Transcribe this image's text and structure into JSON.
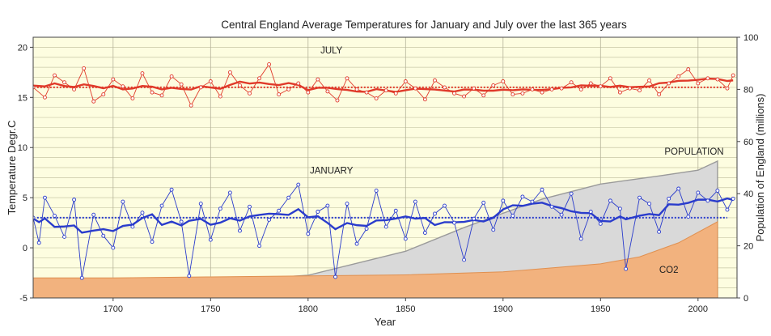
{
  "chart_data": {
    "type": "line",
    "title": "Central England Average Temperatures for January and July over the last 365 years",
    "xlabel": "Year",
    "ylabel": "Temperature Degr.C",
    "y2label": "Population of England (millions)",
    "xlim": [
      1659,
      2020
    ],
    "ylim": [
      -5,
      21
    ],
    "y2lim": [
      0,
      100
    ],
    "x_ticks": [
      1700,
      1750,
      1800,
      1850,
      1900,
      1950,
      2000
    ],
    "y_ticks": [
      -5,
      0,
      5,
      10,
      15,
      20
    ],
    "y2_ticks": [
      0,
      20,
      40,
      60,
      80,
      100
    ],
    "grid": true,
    "annotations": [
      {
        "label": "JULY",
        "x": 1812,
        "y": 19.4
      },
      {
        "label": "JANUARY",
        "x": 1812,
        "y": 7.4
      },
      {
        "label": "POPULATION",
        "x": 1998,
        "y": 9.3
      },
      {
        "label": "CO2",
        "x": 1985,
        "y": -2.5
      }
    ],
    "series": [
      {
        "name": "July",
        "color": "#e03a2a",
        "mean": 16.0,
        "x": [
          1659,
          1665,
          1670,
          1675,
          1680,
          1685,
          1690,
          1695,
          1700,
          1705,
          1710,
          1715,
          1720,
          1725,
          1730,
          1735,
          1740,
          1745,
          1750,
          1755,
          1760,
          1765,
          1770,
          1775,
          1780,
          1785,
          1790,
          1795,
          1800,
          1805,
          1810,
          1815,
          1820,
          1825,
          1830,
          1835,
          1840,
          1845,
          1850,
          1855,
          1860,
          1865,
          1870,
          1875,
          1880,
          1885,
          1890,
          1895,
          1900,
          1905,
          1910,
          1915,
          1920,
          1925,
          1930,
          1935,
          1940,
          1945,
          1950,
          1955,
          1960,
          1965,
          1970,
          1975,
          1980,
          1985,
          1990,
          1995,
          2000,
          2005,
          2010,
          2015,
          2018
        ],
        "values": [
          16.0,
          15.0,
          17.2,
          16.5,
          15.8,
          17.9,
          14.6,
          15.3,
          16.8,
          16.1,
          14.9,
          17.4,
          15.5,
          15.2,
          17.1,
          16.3,
          14.2,
          16.0,
          16.6,
          15.1,
          17.5,
          16.2,
          15.4,
          16.9,
          18.3,
          15.3,
          15.8,
          16.4,
          15.5,
          16.8,
          15.6,
          14.7,
          16.9,
          15.8,
          15.5,
          14.9,
          15.7,
          15.4,
          16.6,
          15.9,
          14.8,
          16.7,
          16.0,
          15.4,
          15.1,
          15.9,
          15.2,
          16.2,
          16.6,
          15.3,
          15.4,
          15.8,
          15.5,
          15.8,
          15.9,
          16.5,
          15.8,
          16.4,
          16.1,
          16.9,
          15.5,
          15.9,
          15.7,
          16.7,
          15.3,
          16.4,
          17.1,
          17.8,
          16.4,
          16.9,
          16.8,
          15.9,
          17.2
        ]
      },
      {
        "name": "January",
        "color": "#2a3ccc",
        "mean": 3.0,
        "x": [
          1659,
          1662,
          1665,
          1670,
          1675,
          1680,
          1684,
          1690,
          1695,
          1700,
          1705,
          1710,
          1715,
          1720,
          1725,
          1730,
          1735,
          1739,
          1745,
          1750,
          1755,
          1760,
          1765,
          1770,
          1775,
          1780,
          1785,
          1790,
          1795,
          1800,
          1805,
          1810,
          1814,
          1820,
          1825,
          1830,
          1835,
          1840,
          1845,
          1850,
          1855,
          1860,
          1865,
          1870,
          1875,
          1880,
          1885,
          1890,
          1895,
          1900,
          1905,
          1910,
          1915,
          1920,
          1925,
          1930,
          1935,
          1940,
          1945,
          1950,
          1955,
          1960,
          1963,
          1970,
          1975,
          1980,
          1985,
          1990,
          1995,
          2000,
          2005,
          2010,
          2015,
          2018
        ],
        "values": [
          3.0,
          0.5,
          5.0,
          3.2,
          1.1,
          4.8,
          -3.0,
          3.3,
          1.2,
          0.0,
          4.6,
          2.1,
          3.5,
          0.6,
          4.2,
          5.8,
          2.6,
          -2.8,
          4.4,
          0.8,
          3.9,
          5.5,
          1.7,
          4.1,
          0.2,
          2.8,
          3.7,
          5.0,
          6.3,
          1.4,
          3.6,
          4.2,
          -2.9,
          4.4,
          0.4,
          1.9,
          5.7,
          2.1,
          3.7,
          0.9,
          4.6,
          1.5,
          3.4,
          4.2,
          2.5,
          -1.2,
          2.9,
          4.5,
          1.8,
          4.7,
          3.2,
          5.1,
          4.6,
          5.8,
          4.1,
          3.3,
          5.4,
          0.9,
          3.6,
          2.4,
          4.7,
          3.9,
          -2.1,
          5.0,
          4.4,
          1.6,
          4.9,
          5.9,
          3.1,
          5.5,
          4.7,
          5.7,
          3.8,
          4.9
        ]
      },
      {
        "name": "Population",
        "color": "#aaaaaa",
        "axis": "right",
        "x": [
          1659,
          1700,
          1750,
          1800,
          1850,
          1880,
          1900,
          1920,
          1950,
          1980,
          2000,
          2010
        ],
        "values": [
          5.3,
          5.5,
          6.2,
          8.7,
          17.9,
          27,
          32.5,
          37.9,
          43.7,
          46.8,
          49,
          52.5
        ]
      },
      {
        "name": "CO2",
        "color": "#f0b07a",
        "x": [
          1659,
          1700,
          1750,
          1800,
          1850,
          1900,
          1950,
          1970,
          1990,
          2010
        ],
        "values": [
          -3.0,
          -3.0,
          -2.9,
          -2.8,
          -2.7,
          -2.4,
          -1.6,
          -0.9,
          0.5,
          2.6
        ]
      }
    ]
  }
}
